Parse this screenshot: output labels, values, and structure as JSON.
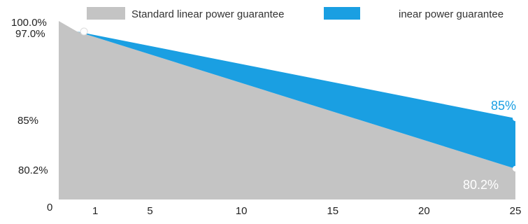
{
  "chart_data": {
    "type": "area",
    "x": [
      0,
      1,
      25
    ],
    "series": [
      {
        "name": "Standard linear power guarantee",
        "values": [
          100.0,
          97.0,
          80.2
        ],
        "color": "#c4c4c4"
      },
      {
        "name": "inear power guarantee",
        "values": [
          100.0,
          97.0,
          85.0
        ],
        "color": "#1a9fe2"
      }
    ],
    "xticks": [
      "1",
      "5",
      "10",
      "15",
      "20",
      "25"
    ],
    "xtick_values": [
      1,
      5,
      10,
      15,
      20,
      25
    ],
    "yticks": [
      "0",
      "80.2%",
      "85%",
      "97.0%",
      "100.0%"
    ],
    "end_labels": [
      "85%",
      "80.2%"
    ],
    "xlim": [
      0,
      25
    ],
    "grid": false,
    "legend_position": "top"
  }
}
